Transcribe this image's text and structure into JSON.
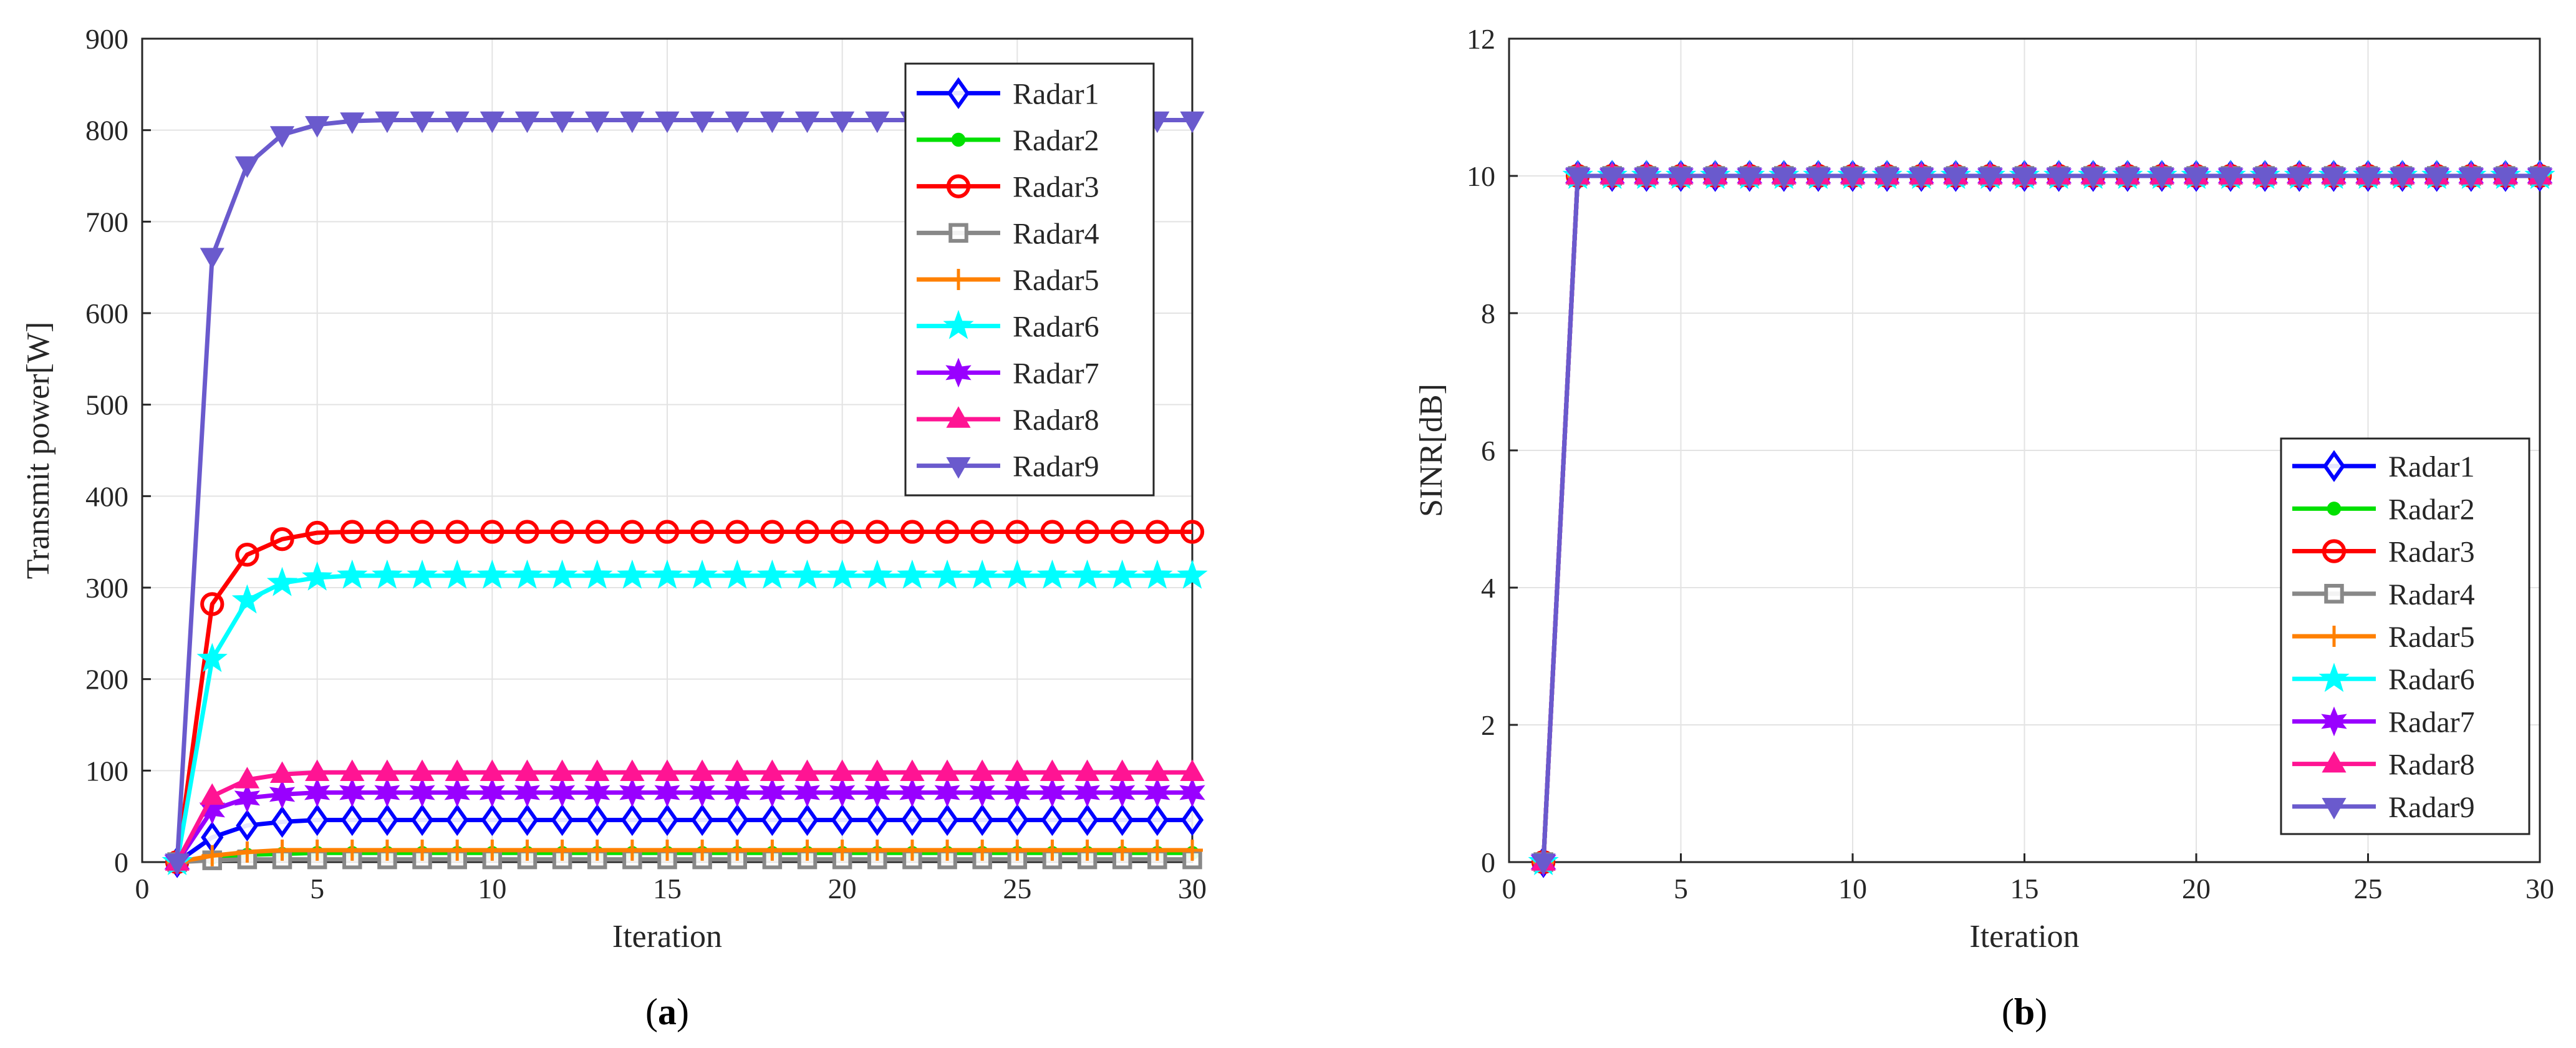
{
  "series_style": [
    {
      "name": "Radar1",
      "color": "#0000ff",
      "marker": "diamond"
    },
    {
      "name": "Radar2",
      "color": "#00e000",
      "marker": "dot"
    },
    {
      "name": "Radar3",
      "color": "#ff0000",
      "marker": "circle"
    },
    {
      "name": "Radar4",
      "color": "#888888",
      "marker": "square"
    },
    {
      "name": "Radar5",
      "color": "#ff8000",
      "marker": "plus"
    },
    {
      "name": "Radar6",
      "color": "#00ffff",
      "marker": "star"
    },
    {
      "name": "Radar7",
      "color": "#9900ff",
      "marker": "hexagram"
    },
    {
      "name": "Radar8",
      "color": "#ff1493",
      "marker": "triangle-up"
    },
    {
      "name": "Radar9",
      "color": "#6a5acd",
      "marker": "triangle-down"
    }
  ],
  "chart_data": [
    {
      "id": "a",
      "type": "line",
      "caption_letter": "a",
      "xlabel": "Iteration",
      "ylabel": "Transmit power[W]",
      "xlim": [
        0,
        30
      ],
      "ylim": [
        0,
        900
      ],
      "xticks": [
        0,
        5,
        10,
        15,
        20,
        25,
        30
      ],
      "yticks": [
        0,
        100,
        200,
        300,
        400,
        500,
        600,
        700,
        800,
        900
      ],
      "grid": true,
      "legend_position": "top-right",
      "x": [
        1,
        2,
        3,
        4,
        5,
        6,
        7,
        8,
        9,
        10,
        11,
        12,
        13,
        14,
        15,
        16,
        17,
        18,
        19,
        20,
        21,
        22,
        23,
        24,
        25,
        26,
        27,
        28,
        29,
        30
      ],
      "series": [
        {
          "name": "Radar1",
          "values": [
            0,
            27,
            40,
            44,
            46,
            46,
            46,
            46,
            46,
            46,
            46,
            46,
            46,
            46,
            46,
            46,
            46,
            46,
            46,
            46,
            46,
            46,
            46,
            46,
            46,
            46,
            46,
            46,
            46,
            46
          ]
        },
        {
          "name": "Radar2",
          "values": [
            0,
            5,
            8,
            9,
            10,
            10,
            10,
            10,
            10,
            10,
            10,
            10,
            10,
            10,
            10,
            10,
            10,
            10,
            10,
            10,
            10,
            10,
            10,
            10,
            10,
            10,
            10,
            10,
            10,
            10
          ]
        },
        {
          "name": "Radar3",
          "values": [
            0,
            282,
            336,
            353,
            360,
            361,
            361,
            361,
            361,
            361,
            361,
            361,
            361,
            361,
            361,
            361,
            361,
            361,
            361,
            361,
            361,
            361,
            361,
            361,
            361,
            361,
            361,
            361,
            361,
            361
          ]
        },
        {
          "name": "Radar4",
          "values": [
            0,
            2,
            3,
            3,
            3,
            3,
            3,
            3,
            3,
            3,
            3,
            3,
            3,
            3,
            3,
            3,
            3,
            3,
            3,
            3,
            3,
            3,
            3,
            3,
            3,
            3,
            3,
            3,
            3,
            3
          ]
        },
        {
          "name": "Radar5",
          "values": [
            0,
            7,
            11,
            13,
            13,
            13,
            13,
            13,
            13,
            13,
            13,
            13,
            13,
            13,
            13,
            13,
            13,
            13,
            13,
            13,
            13,
            13,
            13,
            13,
            13,
            13,
            13,
            13,
            13,
            13
          ]
        },
        {
          "name": "Radar6",
          "values": [
            0,
            222,
            286,
            305,
            311,
            313,
            313,
            313,
            313,
            313,
            313,
            313,
            313,
            313,
            313,
            313,
            313,
            313,
            313,
            313,
            313,
            313,
            313,
            313,
            313,
            313,
            313,
            313,
            313,
            313
          ]
        },
        {
          "name": "Radar7",
          "values": [
            0,
            57,
            70,
            74,
            76,
            76,
            76,
            76,
            76,
            76,
            76,
            76,
            76,
            76,
            76,
            76,
            76,
            76,
            76,
            76,
            76,
            76,
            76,
            76,
            76,
            76,
            76,
            76,
            76,
            76
          ]
        },
        {
          "name": "Radar8",
          "values": [
            0,
            72,
            90,
            96,
            98,
            98,
            98,
            98,
            98,
            98,
            98,
            98,
            98,
            98,
            98,
            98,
            98,
            98,
            98,
            98,
            98,
            98,
            98,
            98,
            98,
            98,
            98,
            98,
            98,
            98
          ]
        },
        {
          "name": "Radar9",
          "values": [
            0,
            662,
            762,
            795,
            806,
            810,
            811,
            811,
            811,
            811,
            811,
            811,
            811,
            811,
            811,
            811,
            811,
            811,
            811,
            811,
            811,
            811,
            811,
            811,
            811,
            811,
            811,
            811,
            811,
            811
          ]
        }
      ]
    },
    {
      "id": "b",
      "type": "line",
      "caption_letter": "b",
      "xlabel": "Iteration",
      "ylabel": "SINR[dB]",
      "xlim": [
        0,
        30
      ],
      "ylim": [
        0,
        12
      ],
      "xticks": [
        0,
        5,
        10,
        15,
        20,
        25,
        30
      ],
      "yticks": [
        0,
        2,
        4,
        6,
        8,
        10,
        12
      ],
      "grid": true,
      "legend_position": "bottom-right",
      "x": [
        1,
        2,
        3,
        4,
        5,
        6,
        7,
        8,
        9,
        10,
        11,
        12,
        13,
        14,
        15,
        16,
        17,
        18,
        19,
        20,
        21,
        22,
        23,
        24,
        25,
        26,
        27,
        28,
        29,
        30
      ],
      "series": [
        {
          "name": "Radar1",
          "values": [
            0,
            10,
            10,
            10,
            10,
            10,
            10,
            10,
            10,
            10,
            10,
            10,
            10,
            10,
            10,
            10,
            10,
            10,
            10,
            10,
            10,
            10,
            10,
            10,
            10,
            10,
            10,
            10,
            10,
            10
          ]
        },
        {
          "name": "Radar2",
          "values": [
            0,
            10,
            10,
            10,
            10,
            10,
            10,
            10,
            10,
            10,
            10,
            10,
            10,
            10,
            10,
            10,
            10,
            10,
            10,
            10,
            10,
            10,
            10,
            10,
            10,
            10,
            10,
            10,
            10,
            10
          ]
        },
        {
          "name": "Radar3",
          "values": [
            0,
            10,
            10,
            10,
            10,
            10,
            10,
            10,
            10,
            10,
            10,
            10,
            10,
            10,
            10,
            10,
            10,
            10,
            10,
            10,
            10,
            10,
            10,
            10,
            10,
            10,
            10,
            10,
            10,
            10
          ]
        },
        {
          "name": "Radar4",
          "values": [
            0,
            10,
            10,
            10,
            10,
            10,
            10,
            10,
            10,
            10,
            10,
            10,
            10,
            10,
            10,
            10,
            10,
            10,
            10,
            10,
            10,
            10,
            10,
            10,
            10,
            10,
            10,
            10,
            10,
            10
          ]
        },
        {
          "name": "Radar5",
          "values": [
            0,
            10,
            10,
            10,
            10,
            10,
            10,
            10,
            10,
            10,
            10,
            10,
            10,
            10,
            10,
            10,
            10,
            10,
            10,
            10,
            10,
            10,
            10,
            10,
            10,
            10,
            10,
            10,
            10,
            10
          ]
        },
        {
          "name": "Radar6",
          "values": [
            0,
            10,
            10,
            10,
            10,
            10,
            10,
            10,
            10,
            10,
            10,
            10,
            10,
            10,
            10,
            10,
            10,
            10,
            10,
            10,
            10,
            10,
            10,
            10,
            10,
            10,
            10,
            10,
            10,
            10
          ]
        },
        {
          "name": "Radar7",
          "values": [
            0,
            10,
            10,
            10,
            10,
            10,
            10,
            10,
            10,
            10,
            10,
            10,
            10,
            10,
            10,
            10,
            10,
            10,
            10,
            10,
            10,
            10,
            10,
            10,
            10,
            10,
            10,
            10,
            10,
            10
          ]
        },
        {
          "name": "Radar8",
          "values": [
            0,
            10,
            10,
            10,
            10,
            10,
            10,
            10,
            10,
            10,
            10,
            10,
            10,
            10,
            10,
            10,
            10,
            10,
            10,
            10,
            10,
            10,
            10,
            10,
            10,
            10,
            10,
            10,
            10,
            10
          ]
        },
        {
          "name": "Radar9",
          "values": [
            0,
            10,
            10,
            10,
            10,
            10,
            10,
            10,
            10,
            10,
            10,
            10,
            10,
            10,
            10,
            10,
            10,
            10,
            10,
            10,
            10,
            10,
            10,
            10,
            10,
            10,
            10,
            10,
            10,
            10
          ]
        }
      ]
    }
  ]
}
